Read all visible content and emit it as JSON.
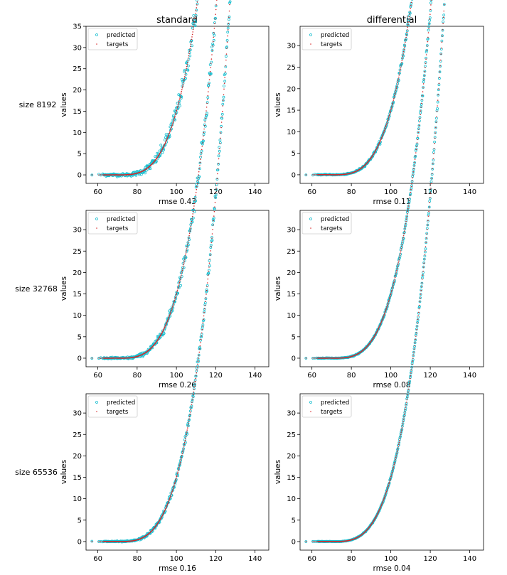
{
  "column_titles": [
    "standard",
    "differential"
  ],
  "row_labels": [
    "size 8192",
    "size 32768",
    "size 65536"
  ],
  "colors": {
    "predicted": "#17becf",
    "targets": "#d62728",
    "axes": "#000000",
    "background": "#ffffff"
  },
  "chart_data": [
    {
      "type": "scatter",
      "row_label": "size 8192",
      "column_title": "standard",
      "xlabel": "rmse 0.43",
      "ylabel": "values",
      "xlim": [
        54,
        147
      ],
      "ylim": [
        -2,
        35
      ],
      "xticks": [
        60,
        80,
        100,
        120,
        140
      ],
      "yticks": [
        0,
        5,
        10,
        15,
        20,
        25,
        30,
        35
      ],
      "legend": {
        "position": "top-left",
        "entries": [
          "predicted",
          "targets"
        ]
      },
      "noise": 1.2,
      "series": [
        {
          "name": "predicted",
          "marker": "hollow-circle"
        },
        {
          "name": "targets",
          "marker": "dot"
        }
      ]
    },
    {
      "type": "scatter",
      "row_label": "size 8192",
      "column_title": "differential",
      "xlabel": "rmse 0.11",
      "ylabel": "values",
      "xlim": [
        54,
        147
      ],
      "ylim": [
        -2,
        34.5
      ],
      "xticks": [
        60,
        80,
        100,
        120,
        140
      ],
      "yticks": [
        0,
        5,
        10,
        15,
        20,
        25,
        30
      ],
      "legend": {
        "position": "top-left",
        "entries": [
          "predicted",
          "targets"
        ]
      },
      "noise": 0.3,
      "series": [
        {
          "name": "predicted",
          "marker": "hollow-circle"
        },
        {
          "name": "targets",
          "marker": "dot"
        }
      ]
    },
    {
      "type": "scatter",
      "row_label": "size 32768",
      "column_title": "standard",
      "xlabel": "rmse 0.26",
      "ylabel": "values",
      "xlim": [
        54,
        147
      ],
      "ylim": [
        -2,
        34.5
      ],
      "xticks": [
        60,
        80,
        100,
        120,
        140
      ],
      "yticks": [
        0,
        5,
        10,
        15,
        20,
        25,
        30
      ],
      "legend": {
        "position": "top-left",
        "entries": [
          "predicted",
          "targets"
        ]
      },
      "noise": 0.75,
      "series": [
        {
          "name": "predicted",
          "marker": "hollow-circle"
        },
        {
          "name": "targets",
          "marker": "dot"
        }
      ]
    },
    {
      "type": "scatter",
      "row_label": "size 32768",
      "column_title": "differential",
      "xlabel": "rmse 0.08",
      "ylabel": "values",
      "xlim": [
        54,
        147
      ],
      "ylim": [
        -2,
        34.5
      ],
      "xticks": [
        60,
        80,
        100,
        120,
        140
      ],
      "yticks": [
        0,
        5,
        10,
        15,
        20,
        25,
        30
      ],
      "legend": {
        "position": "top-left",
        "entries": [
          "predicted",
          "targets"
        ]
      },
      "noise": 0.22,
      "series": [
        {
          "name": "predicted",
          "marker": "hollow-circle"
        },
        {
          "name": "targets",
          "marker": "dot"
        }
      ]
    },
    {
      "type": "scatter",
      "row_label": "size 65536",
      "column_title": "standard",
      "xlabel": "rmse 0.16",
      "ylabel": "values",
      "xlim": [
        54,
        147
      ],
      "ylim": [
        -2,
        34.5
      ],
      "xticks": [
        60,
        80,
        100,
        120,
        140
      ],
      "yticks": [
        0,
        5,
        10,
        15,
        20,
        25,
        30
      ],
      "legend": {
        "position": "top-left",
        "entries": [
          "predicted",
          "targets"
        ]
      },
      "noise": 0.45,
      "series": [
        {
          "name": "predicted",
          "marker": "hollow-circle"
        },
        {
          "name": "targets",
          "marker": "dot"
        }
      ]
    },
    {
      "type": "scatter",
      "row_label": "size 65536",
      "column_title": "differential",
      "xlabel": "rmse 0.04",
      "ylabel": "values",
      "xlim": [
        54,
        147
      ],
      "ylim": [
        -2,
        34.5
      ],
      "xticks": [
        60,
        80,
        100,
        120,
        140
      ],
      "yticks": [
        0,
        5,
        10,
        15,
        20,
        25,
        30
      ],
      "legend": {
        "position": "top-left",
        "entries": [
          "predicted",
          "targets"
        ]
      },
      "noise": 0.12,
      "series": [
        {
          "name": "predicted",
          "marker": "hollow-circle"
        },
        {
          "name": "targets",
          "marker": "dot"
        }
      ]
    }
  ]
}
